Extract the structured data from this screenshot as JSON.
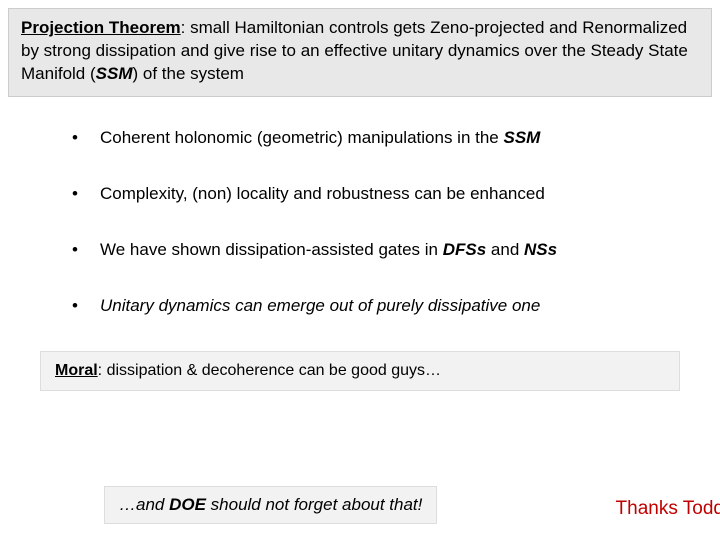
{
  "theorem": {
    "title": "Projection Theorem",
    "body_parts": [
      ": small Hamiltonian controls gets Zeno-projected and Renormalized by strong dissipation and give rise to an effective unitary dynamics over the Steady State Manifold (",
      "SSM",
      ") of the system"
    ]
  },
  "bullets": [
    {
      "segments": [
        {
          "text": "Coherent holonomic (geometric) manipulations in the ",
          "style": ""
        },
        {
          "text": "SSM",
          "style": "bold-italic"
        }
      ]
    },
    {
      "segments": [
        {
          "text": "Complexity, (non) locality and robustness can be enhanced",
          "style": ""
        }
      ]
    },
    {
      "segments": [
        {
          "text": "We have shown dissipation-assisted gates in ",
          "style": ""
        },
        {
          "text": "DFSs",
          "style": "bold-italic"
        },
        {
          "text": " and ",
          "style": ""
        },
        {
          "text": "NSs",
          "style": "bold-italic"
        }
      ]
    },
    {
      "segments": [
        {
          "text": "Unitary dynamics can emerge out of purely dissipative one",
          "style": "italic"
        }
      ]
    }
  ],
  "moral": {
    "label": "Moral",
    "text": ": dissipation & decoherence can be good guys…"
  },
  "doe": {
    "pre": "…and ",
    "word": "DOE",
    "post": " should not forget about that!"
  },
  "thanks": "Thanks Todd"
}
